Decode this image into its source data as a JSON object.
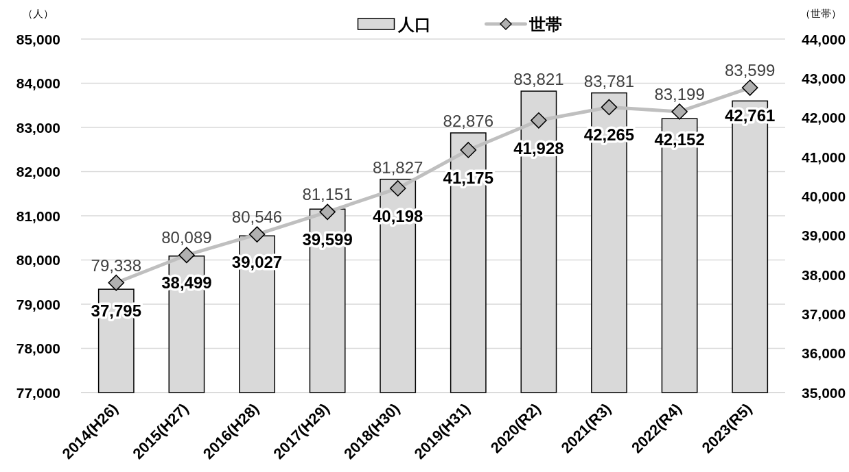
{
  "chart_data": {
    "type": "bar",
    "categories": [
      "2014(H26)",
      "2015(H27)",
      "2016(H28)",
      "2017(H29)",
      "2018(H30)",
      "2019(H31)",
      "2020(R2)",
      "2021(R3)",
      "2022(R4)",
      "2023(R5)"
    ],
    "series": [
      {
        "name": "人口",
        "color": "#d9d9d9",
        "values": [
          79338,
          80089,
          80546,
          81151,
          81827,
          82876,
          83821,
          83781,
          83199,
          83599
        ],
        "value_labels": [
          "79,338",
          "80,089",
          "80,546",
          "81,151",
          "81,827",
          "82,876",
          "83,821",
          "83,781",
          "83,199",
          "83,599"
        ]
      },
      {
        "name": "世帯",
        "type": "line",
        "axis": "y2",
        "color": "#bfbfbf",
        "marker": "diamond",
        "values": [
          37795,
          38499,
          39027,
          39599,
          40198,
          41175,
          41928,
          42265,
          42152,
          42761
        ],
        "value_labels": [
          "37,795",
          "38,499",
          "39,027",
          "39,599",
          "40,198",
          "41,175",
          "41,928",
          "42,265",
          "42,152",
          "42,761"
        ]
      }
    ],
    "ylabel": "（人）",
    "y2label": "（世帯）",
    "ylim": [
      77000,
      85000
    ],
    "yticks": [
      {
        "value": 77000,
        "label": "77,000"
      },
      {
        "value": 78000,
        "label": "78,000"
      },
      {
        "value": 79000,
        "label": "79,000"
      },
      {
        "value": 80000,
        "label": "80,000"
      },
      {
        "value": 81000,
        "label": "81,000"
      },
      {
        "value": 82000,
        "label": "82,000"
      },
      {
        "value": 83000,
        "label": "83,000"
      },
      {
        "value": 84000,
        "label": "84,000"
      },
      {
        "value": 85000,
        "label": "85,000"
      }
    ],
    "y2lim": [
      35000,
      44000
    ],
    "y2ticks": [
      {
        "value": 35000,
        "label": "35,000"
      },
      {
        "value": 36000,
        "label": "36,000"
      },
      {
        "value": 37000,
        "label": "37,000"
      },
      {
        "value": 38000,
        "label": "38,000"
      },
      {
        "value": 39000,
        "label": "39,000"
      },
      {
        "value": 40000,
        "label": "40,000"
      },
      {
        "value": 41000,
        "label": "41,000"
      },
      {
        "value": 42000,
        "label": "42,000"
      },
      {
        "value": 43000,
        "label": "43,000"
      },
      {
        "value": 44000,
        "label": "44,000"
      }
    ],
    "grid": "y",
    "legend": "top"
  }
}
